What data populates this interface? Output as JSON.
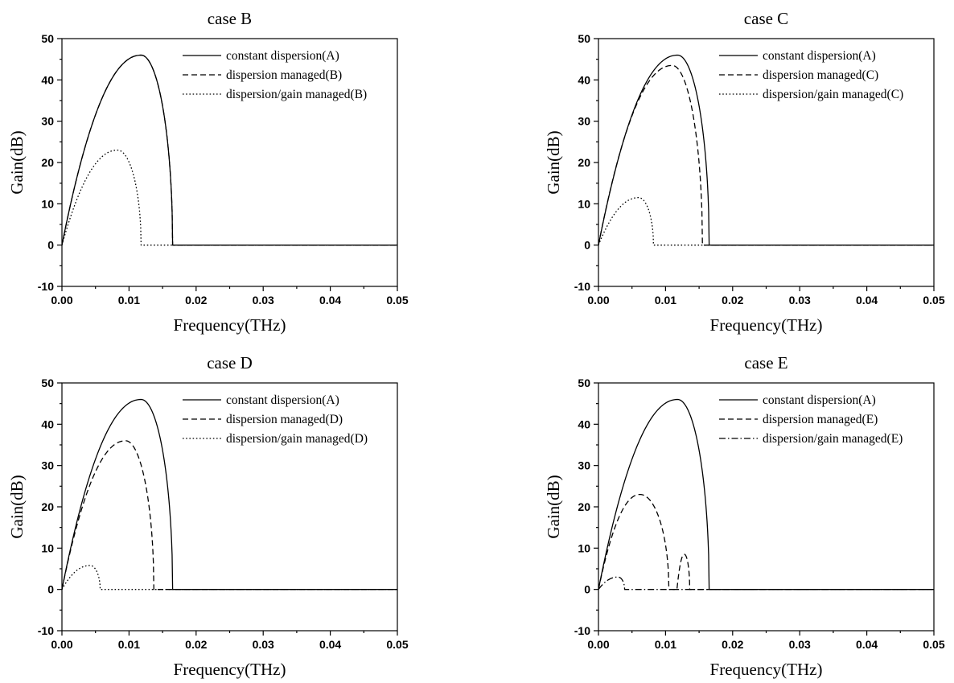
{
  "chart_data": [
    {
      "type": "line",
      "title": "case B",
      "xlabel": "Frequency(THz)",
      "ylabel": "Gain(dB)",
      "xlim": [
        0,
        0.05
      ],
      "ylim": [
        -10,
        50
      ],
      "xticks": [
        "0.00",
        "0.01",
        "0.02",
        "0.03",
        "0.04",
        "0.05"
      ],
      "yticks": [
        "-10",
        "0",
        "10",
        "20",
        "30",
        "40",
        "50"
      ],
      "grid": false,
      "legend_position": "top-right",
      "series": [
        {
          "name": "constant dispersion(A)",
          "style": "solid",
          "peak_x": 0.0118,
          "peak_y": 46,
          "cutoff_x": 0.0165
        },
        {
          "name": "dispersion managed(B)",
          "style": "dashed",
          "peak_x": 0.0118,
          "peak_y": 46,
          "cutoff_x": 0.0165
        },
        {
          "name": "dispersion/gain managed(B)",
          "style": "dotted",
          "peak_x": 0.0083,
          "peak_y": 23,
          "cutoff_x": 0.0118
        }
      ]
    },
    {
      "type": "line",
      "title": "case C",
      "xlabel": "Frequency(THz)",
      "ylabel": "Gain(dB)",
      "xlim": [
        0,
        0.05
      ],
      "ylim": [
        -10,
        50
      ],
      "xticks": [
        "0.00",
        "0.01",
        "0.02",
        "0.03",
        "0.04",
        "0.05"
      ],
      "yticks": [
        "-10",
        "0",
        "10",
        "20",
        "30",
        "40",
        "50"
      ],
      "grid": false,
      "legend_position": "top-right",
      "series": [
        {
          "name": "constant dispersion(A)",
          "style": "solid",
          "peak_x": 0.0118,
          "peak_y": 46,
          "cutoff_x": 0.0165
        },
        {
          "name": "dispersion managed(C)",
          "style": "dashed",
          "peak_x": 0.011,
          "peak_y": 43.5,
          "cutoff_x": 0.0155
        },
        {
          "name": "dispersion/gain managed(C)",
          "style": "dotted",
          "peak_x": 0.006,
          "peak_y": 11.5,
          "cutoff_x": 0.0082
        }
      ]
    },
    {
      "type": "line",
      "title": "case D",
      "xlabel": "Frequency(THz)",
      "ylabel": "Gain(dB)",
      "xlim": [
        0,
        0.05
      ],
      "ylim": [
        -10,
        50
      ],
      "xticks": [
        "0.00",
        "0.01",
        "0.02",
        "0.03",
        "0.04",
        "0.05"
      ],
      "yticks": [
        "-10",
        "0",
        "10",
        "20",
        "30",
        "40",
        "50"
      ],
      "grid": false,
      "legend_position": "top-right",
      "series": [
        {
          "name": "constant dispersion(A)",
          "style": "solid",
          "peak_x": 0.0118,
          "peak_y": 46,
          "cutoff_x": 0.0165
        },
        {
          "name": "dispersion managed(D)",
          "style": "dashed",
          "peak_x": 0.0095,
          "peak_y": 36,
          "cutoff_x": 0.0137
        },
        {
          "name": "dispersion/gain managed(D)",
          "style": "dotted",
          "peak_x": 0.0042,
          "peak_y": 5.8,
          "cutoff_x": 0.0057
        }
      ]
    },
    {
      "type": "line",
      "title": "case E",
      "xlabel": "Frequency(THz)",
      "ylabel": "Gain(dB)",
      "xlim": [
        0,
        0.05
      ],
      "ylim": [
        -10,
        50
      ],
      "xticks": [
        "0.00",
        "0.01",
        "0.02",
        "0.03",
        "0.04",
        "0.05"
      ],
      "yticks": [
        "-10",
        "0",
        "10",
        "20",
        "30",
        "40",
        "50"
      ],
      "grid": false,
      "legend_position": "top-right",
      "series": [
        {
          "name": "constant dispersion(A)",
          "style": "solid",
          "peak_x": 0.0118,
          "peak_y": 46,
          "cutoff_x": 0.0165
        },
        {
          "name": "dispersion managed(E)",
          "style": "dashed",
          "peak_x": 0.0062,
          "peak_y": 23,
          "cutoff_x": 0.0105,
          "second_lobe": {
            "start_x": 0.0117,
            "peak_x": 0.0128,
            "peak_y": 8.5,
            "end_x": 0.0136
          }
        },
        {
          "name": "dispersion/gain managed(E)",
          "style": "dashdot",
          "peak_x": 0.0029,
          "peak_y": 3,
          "cutoff_x": 0.0039
        }
      ]
    }
  ]
}
